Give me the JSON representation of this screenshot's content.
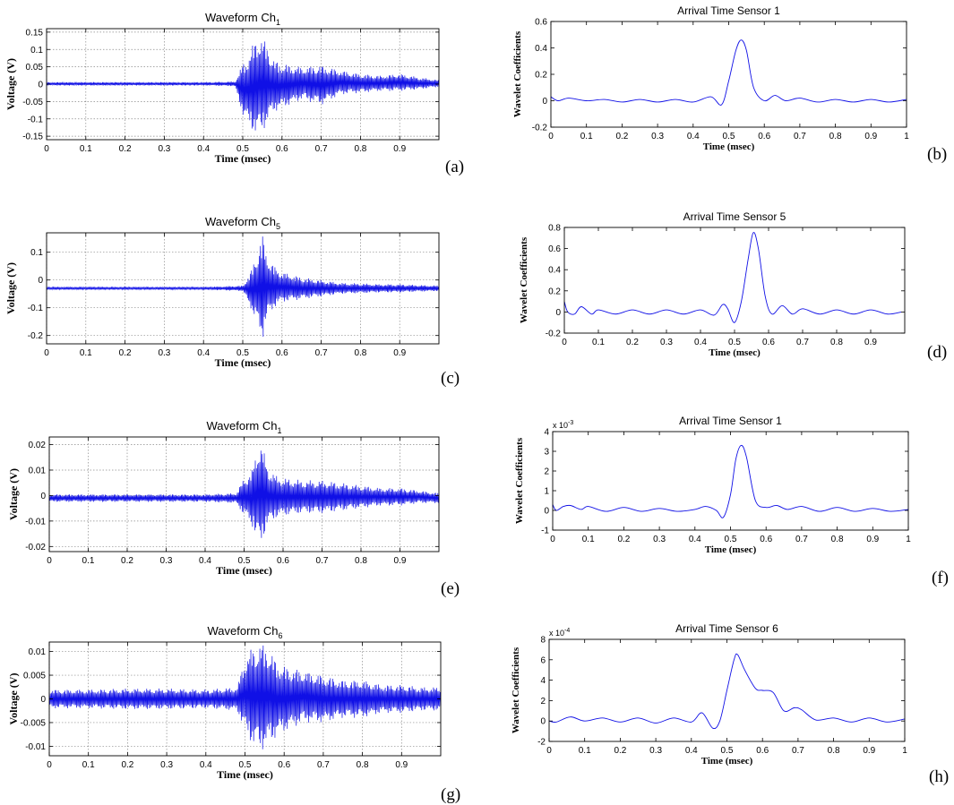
{
  "chart_data": [
    {
      "id": "a",
      "type": "line",
      "panel_label": "(a)",
      "title": "Waveform Ch",
      "title_sub": "1",
      "xlabel": "Time (msec)",
      "ylabel": "Voltage (V)",
      "xlim": [
        0,
        1.0
      ],
      "ylim": [
        -0.16,
        0.16
      ],
      "xticks": [
        0,
        0.1,
        0.2,
        0.3,
        0.4,
        0.5,
        0.6,
        0.7,
        0.8,
        0.9
      ],
      "yticks": [
        -0.15,
        -0.1,
        -0.05,
        0,
        0.05,
        0.1,
        0.15
      ],
      "ytick_labels": [
        "-0.15",
        "-0.1",
        "-0.05",
        "0",
        "0.05",
        "0.1",
        "0.15"
      ],
      "grid": true,
      "color": "#1010e6",
      "series": [
        {
          "x": [
            0,
            0.1,
            0.2,
            0.3,
            0.4,
            0.48,
            0.5,
            0.52,
            0.54,
            0.56,
            0.58,
            0.6,
            0.65,
            0.7,
            0.75,
            0.8,
            0.85,
            0.9,
            0.95,
            1.0
          ],
          "y_max": [
            0.006,
            0.006,
            0.006,
            0.006,
            0.006,
            0.008,
            0.06,
            0.1,
            0.15,
            0.12,
            0.07,
            0.06,
            0.05,
            0.055,
            0.04,
            0.03,
            0.025,
            0.03,
            0.02,
            0.012
          ],
          "y_min": [
            -0.004,
            -0.004,
            -0.004,
            -0.004,
            -0.004,
            -0.006,
            -0.09,
            -0.13,
            -0.155,
            -0.12,
            -0.08,
            -0.07,
            -0.045,
            -0.06,
            -0.03,
            -0.025,
            -0.02,
            -0.02,
            -0.015,
            -0.008
          ]
        }
      ]
    },
    {
      "id": "b",
      "type": "line",
      "panel_label": "(b)",
      "title": "Arrival Time Sensor 1",
      "title_sub": "",
      "xlabel": "Time (msec)",
      "ylabel": "Wavelet Coefficients",
      "xlim": [
        0,
        1
      ],
      "ylim": [
        -0.2,
        0.6
      ],
      "xticks": [
        0,
        0.1,
        0.2,
        0.3,
        0.4,
        0.5,
        0.6,
        0.7,
        0.8,
        0.9,
        1
      ],
      "yticks": [
        -0.2,
        0,
        0.2,
        0.4,
        0.6
      ],
      "ytick_labels": [
        "-0.2",
        "0",
        "0.2",
        "0.4",
        "0.6"
      ],
      "grid": false,
      "color": "#1010e6",
      "series": [
        {
          "x": [
            0,
            0.02,
            0.05,
            0.1,
            0.15,
            0.2,
            0.25,
            0.3,
            0.35,
            0.4,
            0.45,
            0.48,
            0.5,
            0.52,
            0.535,
            0.55,
            0.57,
            0.6,
            0.63,
            0.66,
            0.7,
            0.75,
            0.8,
            0.85,
            0.9,
            0.95,
            1.0
          ],
          "y": [
            0.03,
            0.0,
            0.02,
            0.0,
            0.01,
            -0.01,
            0.01,
            -0.01,
            0.01,
            -0.01,
            0.03,
            -0.03,
            0.15,
            0.38,
            0.46,
            0.38,
            0.1,
            0.0,
            0.04,
            0.0,
            0.02,
            -0.01,
            0.01,
            -0.01,
            0.01,
            -0.01,
            0.01
          ]
        }
      ]
    },
    {
      "id": "c",
      "type": "line",
      "panel_label": "(c)",
      "title": "Waveform Ch",
      "title_sub": "5",
      "xlabel": "Time (msec)",
      "ylabel": "Voltage (V)",
      "xlim": [
        0,
        1.0
      ],
      "ylim": [
        -0.23,
        0.17
      ],
      "xticks": [
        0,
        0.1,
        0.2,
        0.3,
        0.4,
        0.5,
        0.6,
        0.7,
        0.8,
        0.9
      ],
      "yticks": [
        -0.2,
        -0.1,
        0,
        0.1
      ],
      "ytick_labels": [
        "-0.2",
        "-0.1",
        "0",
        "0.1"
      ],
      "grid": true,
      "color": "#1010e6",
      "series": [
        {
          "x": [
            0,
            0.1,
            0.2,
            0.3,
            0.4,
            0.5,
            0.52,
            0.54,
            0.55,
            0.56,
            0.58,
            0.6,
            0.65,
            0.7,
            0.75,
            0.8,
            0.85,
            0.9,
            0.95,
            1.0
          ],
          "y_max": [
            -0.025,
            -0.025,
            -0.025,
            -0.025,
            -0.025,
            -0.02,
            0.03,
            0.12,
            0.17,
            0.1,
            0.05,
            0.03,
            0.01,
            0.0,
            -0.01,
            -0.012,
            -0.015,
            -0.015,
            -0.018,
            -0.02
          ],
          "y_min": [
            -0.035,
            -0.035,
            -0.035,
            -0.035,
            -0.035,
            -0.04,
            -0.1,
            -0.18,
            -0.22,
            -0.15,
            -0.1,
            -0.08,
            -0.07,
            -0.06,
            -0.05,
            -0.048,
            -0.045,
            -0.045,
            -0.042,
            -0.04
          ]
        }
      ]
    },
    {
      "id": "d",
      "type": "line",
      "panel_label": "(d)",
      "title": "Arrival Time Sensor 5",
      "title_sub": "",
      "xlabel": "Time (msec)",
      "ylabel": "Wavelet Coefficients",
      "xlim": [
        0,
        1
      ],
      "ylim": [
        -0.2,
        0.8
      ],
      "xticks": [
        0,
        0.1,
        0.2,
        0.3,
        0.4,
        0.5,
        0.6,
        0.7,
        0.8,
        0.9
      ],
      "yticks": [
        -0.2,
        0,
        0.2,
        0.4,
        0.6,
        0.8
      ],
      "ytick_labels": [
        "-0.2",
        "0",
        "0.2",
        "0.4",
        "0.6",
        "0.8"
      ],
      "grid": false,
      "color": "#1010e6",
      "series": [
        {
          "x": [
            0,
            0.01,
            0.03,
            0.05,
            0.08,
            0.1,
            0.15,
            0.2,
            0.25,
            0.3,
            0.35,
            0.4,
            0.44,
            0.465,
            0.48,
            0.5,
            0.52,
            0.54,
            0.555,
            0.57,
            0.59,
            0.61,
            0.64,
            0.67,
            0.7,
            0.75,
            0.8,
            0.85,
            0.9,
            0.95,
            0.99
          ],
          "y": [
            0.1,
            0.0,
            -0.02,
            0.05,
            -0.02,
            0.02,
            -0.02,
            0.02,
            -0.02,
            0.02,
            -0.02,
            0.02,
            -0.03,
            0.07,
            0.03,
            -0.1,
            0.1,
            0.5,
            0.75,
            0.6,
            0.15,
            -0.02,
            0.06,
            -0.02,
            0.03,
            -0.02,
            0.02,
            -0.02,
            0.02,
            -0.02,
            0.0
          ]
        }
      ]
    },
    {
      "id": "e",
      "type": "line",
      "panel_label": "(e)",
      "title": "Waveform Ch",
      "title_sub": "1",
      "xlabel": "Time (msec)",
      "ylabel": "Voltage (V)",
      "xlim": [
        0,
        1.0
      ],
      "ylim": [
        -0.022,
        0.023
      ],
      "xticks": [
        0,
        0.1,
        0.2,
        0.3,
        0.4,
        0.5,
        0.6,
        0.7,
        0.8,
        0.9
      ],
      "yticks": [
        -0.02,
        -0.01,
        0,
        0.01,
        0.02
      ],
      "ytick_labels": [
        "-0.02",
        "-0.01",
        "0",
        "0.01",
        "0.02"
      ],
      "grid": true,
      "color": "#1010e6",
      "series": [
        {
          "x": [
            0,
            0.1,
            0.2,
            0.3,
            0.4,
            0.48,
            0.5,
            0.52,
            0.54,
            0.56,
            0.58,
            0.6,
            0.65,
            0.7,
            0.75,
            0.8,
            0.85,
            0.9,
            0.95,
            1.0
          ],
          "y_max": [
            0.0005,
            0.0005,
            0.0005,
            0.0005,
            0.0005,
            0.001,
            0.007,
            0.01,
            0.023,
            0.012,
            0.008,
            0.007,
            0.006,
            0.006,
            0.005,
            0.004,
            0.003,
            0.003,
            0.002,
            0.001
          ],
          "y_min": [
            -0.0025,
            -0.0025,
            -0.0025,
            -0.0025,
            -0.0025,
            -0.003,
            -0.008,
            -0.012,
            -0.021,
            -0.012,
            -0.009,
            -0.008,
            -0.007,
            -0.007,
            -0.006,
            -0.005,
            -0.004,
            -0.004,
            -0.003,
            -0.003
          ]
        }
      ]
    },
    {
      "id": "f",
      "type": "line",
      "panel_label": "(f)",
      "title": "Arrival Time Sensor 1",
      "title_sub": "",
      "xlabel": "Time (msec)",
      "ylabel": "Wavelet Coefficients",
      "xlim": [
        0,
        1
      ],
      "ylim": [
        -1,
        4
      ],
      "xticks": [
        0,
        0.1,
        0.2,
        0.3,
        0.4,
        0.5,
        0.6,
        0.7,
        0.8,
        0.9,
        1
      ],
      "yticks": [
        -1,
        0,
        1,
        2,
        3,
        4
      ],
      "ytick_labels": [
        "-1",
        "0",
        "1",
        "2",
        "3",
        "4"
      ],
      "exponent": "x 10",
      "exponent_power": "-3",
      "grid": false,
      "color": "#1010e6",
      "series": [
        {
          "x": [
            0,
            0.01,
            0.03,
            0.05,
            0.08,
            0.1,
            0.15,
            0.2,
            0.25,
            0.3,
            0.35,
            0.4,
            0.43,
            0.46,
            0.48,
            0.5,
            0.515,
            0.53,
            0.545,
            0.57,
            0.6,
            0.63,
            0.66,
            0.7,
            0.75,
            0.8,
            0.85,
            0.9,
            0.95,
            1.0
          ],
          "y": [
            0.3,
            0.0,
            0.2,
            0.25,
            0.05,
            0.2,
            -0.05,
            0.15,
            -0.05,
            0.1,
            -0.05,
            0.05,
            0.2,
            0.0,
            -0.35,
            0.8,
            2.6,
            3.3,
            2.7,
            0.5,
            0.15,
            0.25,
            0.05,
            0.2,
            -0.05,
            0.15,
            -0.05,
            0.1,
            -0.05,
            0.05
          ]
        }
      ]
    },
    {
      "id": "g",
      "type": "line",
      "panel_label": "(g)",
      "title": "Waveform Ch",
      "title_sub": "6",
      "xlabel": "Time (msec)",
      "ylabel": "Voltage (V)",
      "xlim": [
        0,
        1.0
      ],
      "ylim": [
        -0.012,
        0.012
      ],
      "xticks": [
        0,
        0.1,
        0.2,
        0.3,
        0.4,
        0.5,
        0.6,
        0.7,
        0.8,
        0.9
      ],
      "yticks": [
        -0.01,
        -0.005,
        0,
        0.005,
        0.01
      ],
      "ytick_labels": [
        "-0.01",
        "-0.005",
        "0",
        "0.005",
        "0.01"
      ],
      "grid": true,
      "color": "#1010e6",
      "series": [
        {
          "x": [
            0,
            0.1,
            0.2,
            0.3,
            0.4,
            0.48,
            0.5,
            0.52,
            0.54,
            0.56,
            0.58,
            0.6,
            0.65,
            0.7,
            0.75,
            0.8,
            0.85,
            0.9,
            0.95,
            1.0
          ],
          "y_max": [
            0.002,
            0.002,
            0.0022,
            0.0022,
            0.002,
            0.0025,
            0.009,
            0.011,
            0.012,
            0.011,
            0.008,
            0.007,
            0.006,
            0.005,
            0.004,
            0.004,
            0.003,
            0.003,
            0.0025,
            0.0025
          ],
          "y_min": [
            -0.002,
            -0.002,
            -0.0022,
            -0.0022,
            -0.002,
            -0.0025,
            -0.007,
            -0.01,
            -0.011,
            -0.01,
            -0.008,
            -0.007,
            -0.005,
            -0.005,
            -0.004,
            -0.004,
            -0.003,
            -0.003,
            -0.0025,
            -0.0025
          ]
        }
      ]
    },
    {
      "id": "h",
      "type": "line",
      "panel_label": "(h)",
      "title": "Arrival Time Sensor 6",
      "title_sub": "",
      "xlabel": "Time (msec)",
      "ylabel": "Wavelet Coefficients",
      "xlim": [
        0,
        1
      ],
      "ylim": [
        -2,
        8
      ],
      "xticks": [
        0,
        0.1,
        0.2,
        0.3,
        0.4,
        0.5,
        0.6,
        0.7,
        0.8,
        0.9,
        1
      ],
      "yticks": [
        -2,
        0,
        2,
        4,
        6,
        8
      ],
      "ytick_labels": [
        "-2",
        "0",
        "2",
        "4",
        "6",
        "8"
      ],
      "exponent": "x 10",
      "exponent_power": "-4",
      "grid": false,
      "color": "#1010e6",
      "series": [
        {
          "x": [
            0,
            0.02,
            0.06,
            0.1,
            0.15,
            0.2,
            0.25,
            0.3,
            0.35,
            0.4,
            0.43,
            0.46,
            0.48,
            0.5,
            0.52,
            0.53,
            0.55,
            0.58,
            0.6,
            0.63,
            0.66,
            0.69,
            0.71,
            0.75,
            0.8,
            0.85,
            0.9,
            0.95,
            1.0
          ],
          "y": [
            0.0,
            -0.1,
            0.4,
            0.0,
            0.3,
            -0.1,
            0.3,
            -0.2,
            0.3,
            -0.1,
            0.8,
            -0.7,
            0.0,
            3.0,
            6.0,
            6.5,
            5.0,
            3.2,
            3.0,
            2.8,
            1.0,
            1.3,
            1.1,
            0.1,
            0.3,
            -0.1,
            0.3,
            -0.1,
            0.2
          ]
        }
      ]
    }
  ]
}
